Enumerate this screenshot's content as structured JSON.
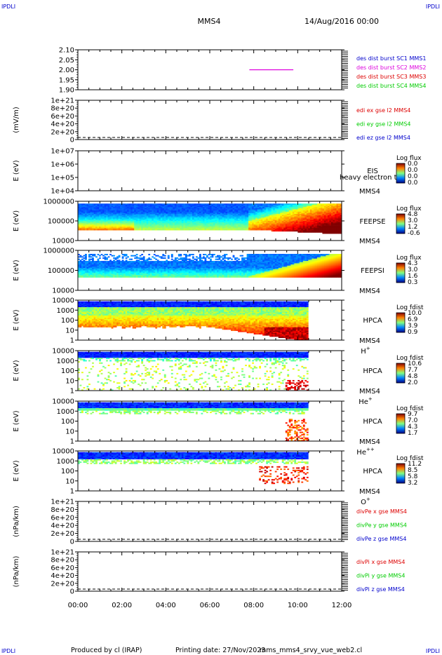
{
  "header": {
    "corner_left": "IPDLI",
    "corner_right": "IPDLI",
    "spacecraft": "MMS4",
    "date": "14/Aug/2016 00:00"
  },
  "footer": {
    "corner_left": "IPDLI",
    "corner_right": "IPDLI",
    "credit": "Produced by cl (IRAP)",
    "print_label": "Printing date: 27/Nov/2023",
    "script_name": "mms_mms4_srvy_vue_web2.cl"
  },
  "colors": {
    "mms1": "#0000cc",
    "mms2": "#dd00dd",
    "mms3": "#dd0000",
    "mms4": "#00cc00",
    "x_component": "#dd0000",
    "y_component": "#00cc00",
    "z_component": "#0000cc"
  },
  "chart_data": {
    "type": "heatmap",
    "x_axis": {
      "ticks": [
        "00:00",
        "02:00",
        "04:00",
        "06:00",
        "08:00",
        "10:00",
        "12:00"
      ],
      "range_hours": [
        0,
        12
      ]
    },
    "panels": [
      {
        "id": "des-dist",
        "kind": "line",
        "ylabel": "",
        "yticks": [
          "2.10",
          "2.05",
          "2.00",
          "1.95",
          "1.90"
        ],
        "ylim": [
          1.9,
          2.1
        ],
        "legend": [
          {
            "text": "des dist burst SC1 MMS1",
            "color_key": "mms1"
          },
          {
            "text": "des dist burst SC2 MMS2",
            "color_key": "mms2"
          },
          {
            "text": "des dist burst SC3 MMS3",
            "color_key": "mms3"
          },
          {
            "text": "des dist burst SC4 MMS4",
            "color_key": "mms4"
          }
        ],
        "series": [
          {
            "color_key": "mms2",
            "x_hours": [
              7.8,
              9.8
            ],
            "y": [
              2.0,
              2.0
            ]
          }
        ]
      },
      {
        "id": "edi-e",
        "kind": "line",
        "ylabel": "(mV/m)",
        "yticks": [
          "1e+21",
          "8e+20",
          "6e+20",
          "4e+20",
          "2e+20",
          "0"
        ],
        "ylim": [
          0,
          1e+21
        ],
        "zero_line": true,
        "legend": [
          {
            "text": "edi ex gse l2 MMS4",
            "color_key": "x_component"
          },
          {
            "text": "edi ey gse l2 MMS4",
            "color_key": "y_component"
          },
          {
            "text": "edi ez gse l2 MMS4",
            "color_key": "z_component"
          }
        ]
      },
      {
        "id": "eis",
        "kind": "spectrogram",
        "ylabel": "E (eV)",
        "yticks": [
          "1e+07",
          "1e+06",
          "1e+05",
          "1e+04"
        ],
        "log_range": [
          4,
          7
        ],
        "instrument": "EIS",
        "overlay_label": "heavy electron to",
        "spacecraft_label": "MMS4",
        "species": "",
        "colorbar": {
          "title": "Log flux",
          "ticks": [
            "0.0",
            "0.0",
            "0.0",
            "0.0"
          ]
        },
        "data_extent_hours": [
          0,
          0
        ]
      },
      {
        "id": "feepse",
        "kind": "spectrogram",
        "pattern": "feepse",
        "ylabel": "E (eV)",
        "yticks": [
          "1000000",
          "100000",
          "10000"
        ],
        "log_range": [
          4,
          6
        ],
        "instrument": "FEEPSE",
        "spacecraft_label": "MMS4",
        "species": "",
        "colorbar": {
          "title": "Log flux",
          "ticks": [
            "4.8",
            "3.0",
            "1.2",
            "-0.6"
          ]
        },
        "data_extent_hours": [
          0,
          12
        ]
      },
      {
        "id": "feepsi",
        "kind": "spectrogram",
        "pattern": "feepsi",
        "ylabel": "E (eV)",
        "yticks": [
          "1000000",
          "100000",
          "10000"
        ],
        "log_range": [
          4,
          6
        ],
        "instrument": "FEEPSI",
        "spacecraft_label": "MMS4",
        "species": "",
        "colorbar": {
          "title": "Log flux",
          "ticks": [
            "4.3",
            "3.0",
            "1.6",
            "0.3"
          ]
        },
        "data_extent_hours": [
          0,
          12
        ]
      },
      {
        "id": "hpca-h",
        "kind": "spectrogram",
        "pattern": "hpca_h",
        "ylabel": "E (eV)",
        "yticks": [
          "10000",
          "1000",
          "100",
          "10",
          "1"
        ],
        "log_range": [
          0,
          4.3
        ],
        "instrument": "HPCA",
        "spacecraft_label": "MMS4",
        "species": "H",
        "species_sup": "+",
        "colorbar": {
          "title": "Log fdist",
          "ticks": [
            "10.0",
            "6.9",
            "3.9",
            "0.9"
          ]
        },
        "data_extent_hours": [
          0,
          10.45
        ]
      },
      {
        "id": "hpca-he",
        "kind": "spectrogram",
        "pattern": "hpca_he",
        "ylabel": "E (eV)",
        "yticks": [
          "10000",
          "1000",
          "100",
          "10",
          "1"
        ],
        "log_range": [
          0,
          4.3
        ],
        "instrument": "HPCA",
        "spacecraft_label": "MMS4",
        "species": "He",
        "species_sup": "+",
        "colorbar": {
          "title": "Log fdist",
          "ticks": [
            "10.6",
            "7.7",
            "4.8",
            "2.0"
          ]
        },
        "data_extent_hours": [
          0,
          10.45
        ]
      },
      {
        "id": "hpca-hepp",
        "kind": "spectrogram",
        "pattern": "hpca_hepp",
        "ylabel": "E (eV)",
        "yticks": [
          "10000",
          "1000",
          "100",
          "10",
          "1"
        ],
        "log_range": [
          0,
          4.3
        ],
        "instrument": "HPCA",
        "spacecraft_label": "MMS4",
        "species": "He",
        "species_sup": "++",
        "colorbar": {
          "title": "Log fdist",
          "ticks": [
            "9.7",
            "7.0",
            "4.3",
            "1.7"
          ]
        },
        "data_extent_hours": [
          0,
          10.45
        ]
      },
      {
        "id": "hpca-o",
        "kind": "spectrogram",
        "pattern": "hpca_o",
        "ylabel": "E (eV)",
        "yticks": [
          "10000",
          "1000",
          "100",
          "10",
          "1"
        ],
        "log_range": [
          0,
          4.3
        ],
        "instrument": "HPCA",
        "spacecraft_label": "MMS4",
        "species": "O",
        "species_sup": "+",
        "colorbar": {
          "title": "Log fdist",
          "ticks": [
            "11.2",
            "8.5",
            "5.8",
            "3.2"
          ]
        },
        "data_extent_hours": [
          0,
          10.45
        ]
      },
      {
        "id": "divpe",
        "kind": "line",
        "ylabel": "(nPa/km)",
        "yticks": [
          "1e+21",
          "8e+20",
          "6e+20",
          "4e+20",
          "2e+20",
          "0"
        ],
        "ylim": [
          0,
          1e+21
        ],
        "zero_line": true,
        "legend": [
          {
            "text": "divPe x gse MMS4",
            "color_key": "x_component"
          },
          {
            "text": "divPe y gse MMS4",
            "color_key": "y_component"
          },
          {
            "text": "divPe z gse MMS4",
            "color_key": "z_component"
          }
        ]
      },
      {
        "id": "divpi",
        "kind": "line",
        "ylabel": "(nPa/km)",
        "yticks": [
          "1e+21",
          "8e+20",
          "6e+20",
          "4e+20",
          "2e+20",
          "0"
        ],
        "ylim": [
          0,
          1e+21
        ],
        "zero_line": true,
        "legend": [
          {
            "text": "divPi x gse MMS4",
            "color_key": "x_component"
          },
          {
            "text": "divPi y gse MMS4",
            "color_key": "y_component"
          },
          {
            "text": "divPi z gse MMS4",
            "color_key": "z_component"
          }
        ]
      }
    ]
  }
}
